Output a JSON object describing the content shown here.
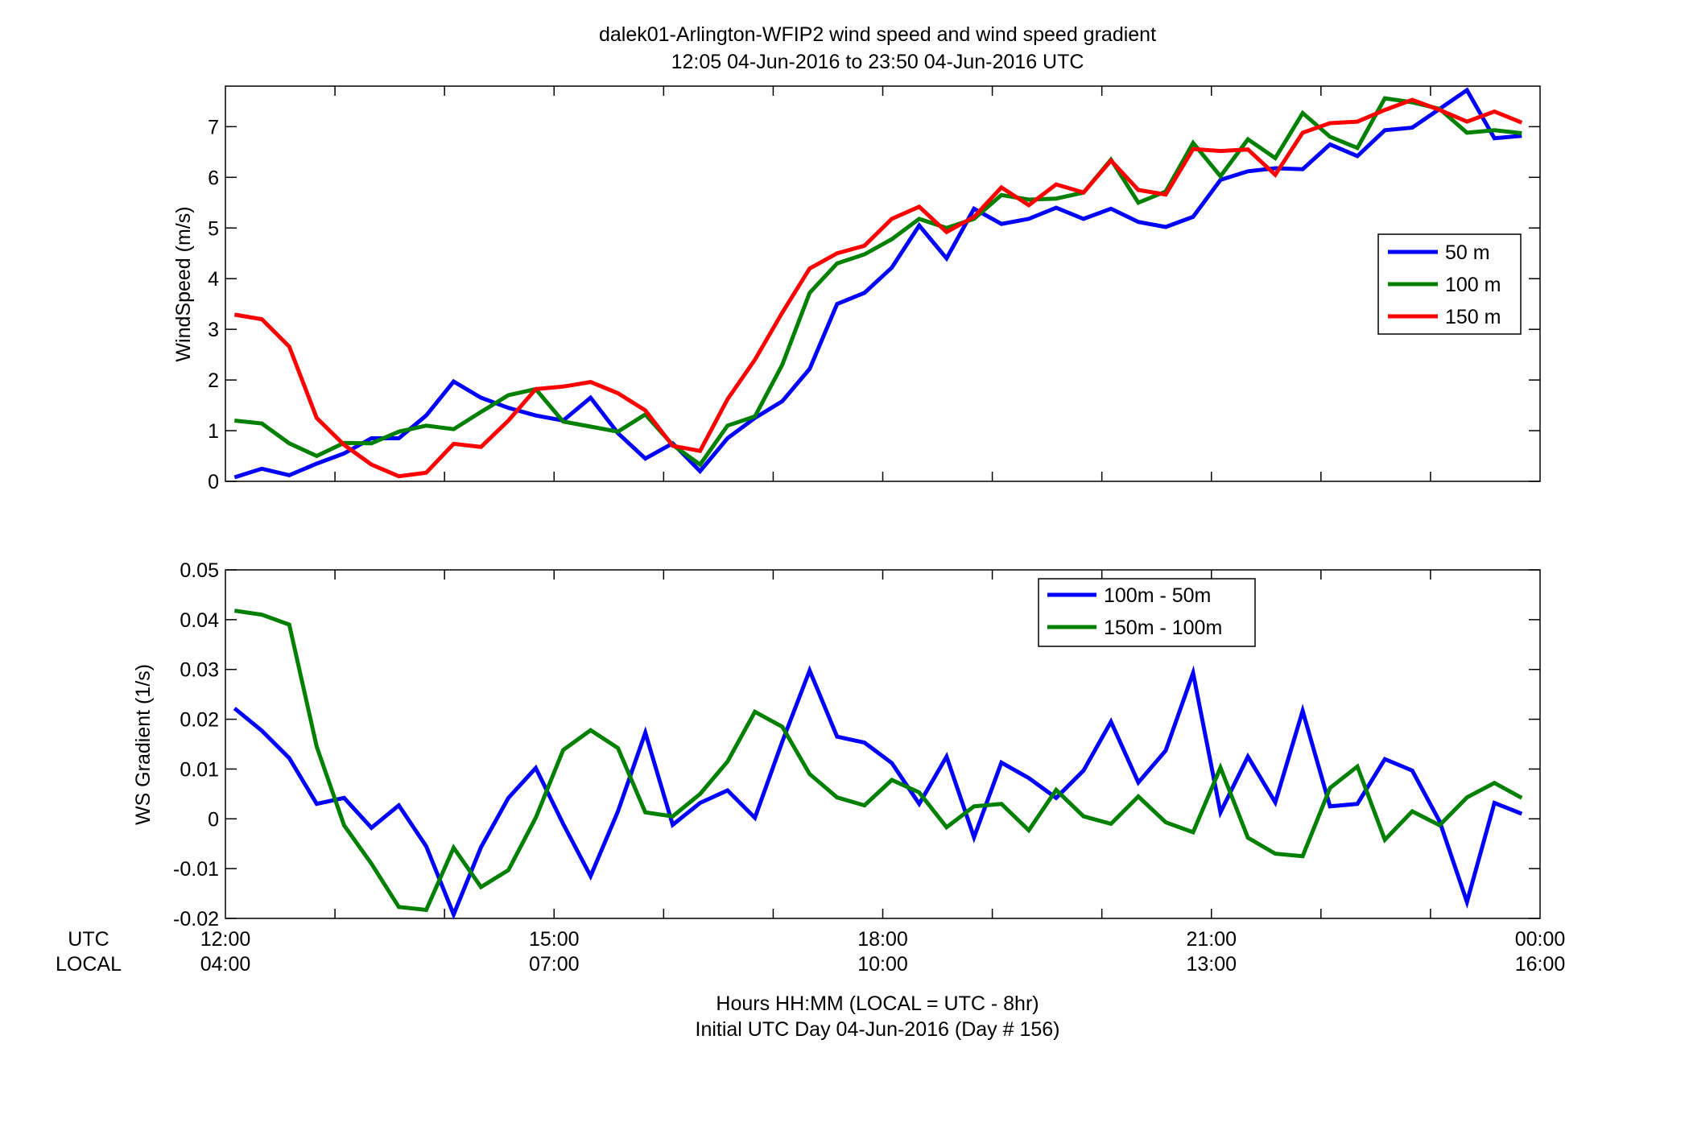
{
  "figure": {
    "title_line1": "dalek01-Arlington-WFIP2  wind speed and wind speed gradient",
    "title_line2": "12:05 04-Jun-2016 to 23:50 04-Jun-2016  UTC",
    "xlabel_line1": "Hours HH:MM  (LOCAL = UTC - 8hr)",
    "xlabel_line2": "Initial UTC Day 04-Jun-2016 (Day # 156)",
    "utc_row_label": "UTC",
    "local_row_label": "LOCAL",
    "x_ticks_utc": [
      "12:00",
      "15:00",
      "18:00",
      "21:00",
      "00:00"
    ],
    "x_ticks_local": [
      "04:00",
      "07:00",
      "10:00",
      "13:00",
      "16:00"
    ],
    "x_tick_hours": [
      12,
      15,
      18,
      21,
      24
    ]
  },
  "chart_data": [
    {
      "type": "line",
      "ylabel": "WindSpeed (m/s)",
      "xlim": [
        12,
        24
      ],
      "ylim": [
        0,
        7.8
      ],
      "yticks": [
        0,
        1,
        2,
        3,
        4,
        5,
        6,
        7
      ],
      "ytick_labels": [
        "0",
        "1",
        "2",
        "3",
        "4",
        "5",
        "6",
        "7"
      ],
      "grid": false,
      "legend_position": "right",
      "x": [
        12.083,
        12.333,
        12.583,
        12.833,
        13.083,
        13.333,
        13.583,
        13.833,
        14.083,
        14.333,
        14.583,
        14.833,
        15.083,
        15.333,
        15.583,
        15.833,
        16.083,
        16.333,
        16.583,
        16.833,
        17.083,
        17.333,
        17.583,
        17.833,
        18.083,
        18.333,
        18.583,
        18.833,
        19.083,
        19.333,
        19.583,
        19.833,
        20.083,
        20.333,
        20.583,
        20.833,
        21.083,
        21.333,
        21.583,
        21.833,
        22.083,
        22.333,
        22.583,
        22.833,
        23.083,
        23.333,
        23.583,
        23.833
      ],
      "series": [
        {
          "name": "50 m",
          "color": "#0000ff",
          "values": [
            0.08,
            0.25,
            0.12,
            0.35,
            0.55,
            0.85,
            0.85,
            1.3,
            1.97,
            1.65,
            1.45,
            1.3,
            1.2,
            1.65,
            0.95,
            0.45,
            0.75,
            0.2,
            0.85,
            1.25,
            1.58,
            2.22,
            3.5,
            3.72,
            4.22,
            5.05,
            4.4,
            5.38,
            5.08,
            5.18,
            5.4,
            5.18,
            5.38,
            5.12,
            5.02,
            5.22,
            5.95,
            6.12,
            6.18,
            6.16,
            6.65,
            6.42,
            6.93,
            6.98,
            7.35,
            7.72,
            6.77,
            6.82
          ]
        },
        {
          "name": "100 m",
          "color": "#008000",
          "values": [
            1.2,
            1.14,
            0.75,
            0.5,
            0.76,
            0.75,
            0.98,
            1.1,
            1.03,
            1.37,
            1.7,
            1.82,
            1.18,
            1.08,
            0.98,
            1.32,
            0.72,
            0.33,
            1.1,
            1.28,
            2.3,
            3.72,
            4.3,
            4.48,
            4.78,
            5.18,
            5.0,
            5.18,
            5.65,
            5.56,
            5.58,
            5.7,
            6.35,
            5.5,
            5.72,
            6.68,
            6.02,
            6.75,
            6.38,
            7.27,
            6.8,
            6.58,
            7.56,
            7.48,
            7.35,
            6.88,
            6.93,
            6.87
          ]
        },
        {
          "name": "150 m",
          "color": "#ff0000",
          "values": [
            3.29,
            3.2,
            2.66,
            1.25,
            0.72,
            0.33,
            0.1,
            0.17,
            0.74,
            0.68,
            1.2,
            1.82,
            1.87,
            1.96,
            1.74,
            1.4,
            0.7,
            0.6,
            1.62,
            2.4,
            3.33,
            4.2,
            4.5,
            4.65,
            5.18,
            5.42,
            4.92,
            5.22,
            5.8,
            5.45,
            5.86,
            5.7,
            6.33,
            5.75,
            5.66,
            6.56,
            6.52,
            6.55,
            6.05,
            6.88,
            7.07,
            7.1,
            7.33,
            7.53,
            7.33,
            7.1,
            7.3,
            7.08
          ]
        }
      ]
    },
    {
      "type": "line",
      "ylabel": "WS Gradient (1/s)",
      "xlim": [
        12,
        24
      ],
      "ylim": [
        -0.02,
        0.05
      ],
      "yticks": [
        -0.02,
        -0.01,
        0,
        0.01,
        0.02,
        0.03,
        0.04,
        0.05
      ],
      "ytick_labels": [
        "-0.02",
        "-0.01",
        "0",
        "0.01",
        "0.02",
        "0.03",
        "0.04",
        "0.05"
      ],
      "grid": false,
      "legend_position": "top-center",
      "x": [
        12.083,
        12.333,
        12.583,
        12.833,
        13.083,
        13.333,
        13.583,
        13.833,
        14.083,
        14.333,
        14.583,
        14.833,
        15.083,
        15.333,
        15.583,
        15.833,
        16.083,
        16.333,
        16.583,
        16.833,
        17.083,
        17.333,
        17.583,
        17.833,
        18.083,
        18.333,
        18.583,
        18.833,
        19.083,
        19.333,
        19.583,
        19.833,
        20.083,
        20.333,
        20.583,
        20.833,
        21.083,
        21.333,
        21.583,
        21.833,
        22.083,
        22.333,
        22.583,
        22.833,
        23.083,
        23.333,
        23.583,
        23.833
      ],
      "series": [
        {
          "name": "100m - 50m",
          "color": "#0000ff",
          "values": [
            0.0222,
            0.0177,
            0.0122,
            0.003,
            0.0042,
            -0.0018,
            0.0027,
            -0.0055,
            -0.0192,
            -0.0057,
            0.0042,
            0.0102,
            -0.001,
            -0.0115,
            0.0015,
            0.0173,
            -0.0012,
            0.0032,
            0.0057,
            0.0002,
            0.0155,
            0.0298,
            0.0165,
            0.0153,
            0.0112,
            0.003,
            0.0125,
            -0.0037,
            0.0113,
            0.0082,
            0.0042,
            0.0097,
            0.0195,
            0.0073,
            0.0137,
            0.0293,
            0.0013,
            0.0125,
            0.0033,
            0.0217,
            0.0025,
            0.003,
            0.012,
            0.0097,
            -0.0005,
            -0.0167,
            0.0032,
            0.001
          ]
        },
        {
          "name": "150m - 100m",
          "color": "#008000",
          "values": [
            0.0418,
            0.041,
            0.039,
            0.0145,
            -0.0013,
            -0.009,
            -0.0177,
            -0.0183,
            -0.0058,
            -0.0137,
            -0.0103,
            0.0002,
            0.0138,
            0.0178,
            0.0142,
            0.0013,
            0.0005,
            0.005,
            0.0115,
            0.0215,
            0.0185,
            0.009,
            0.0043,
            0.0027,
            0.0078,
            0.0053,
            -0.0017,
            0.0025,
            0.003,
            -0.0023,
            0.0058,
            0.0005,
            -0.001,
            0.0045,
            -0.0007,
            -0.0027,
            0.0103,
            -0.0038,
            -0.007,
            -0.0075,
            0.0062,
            0.0105,
            -0.0042,
            0.0015,
            -0.0013,
            0.0043,
            0.0072,
            0.0042
          ]
        }
      ]
    }
  ]
}
